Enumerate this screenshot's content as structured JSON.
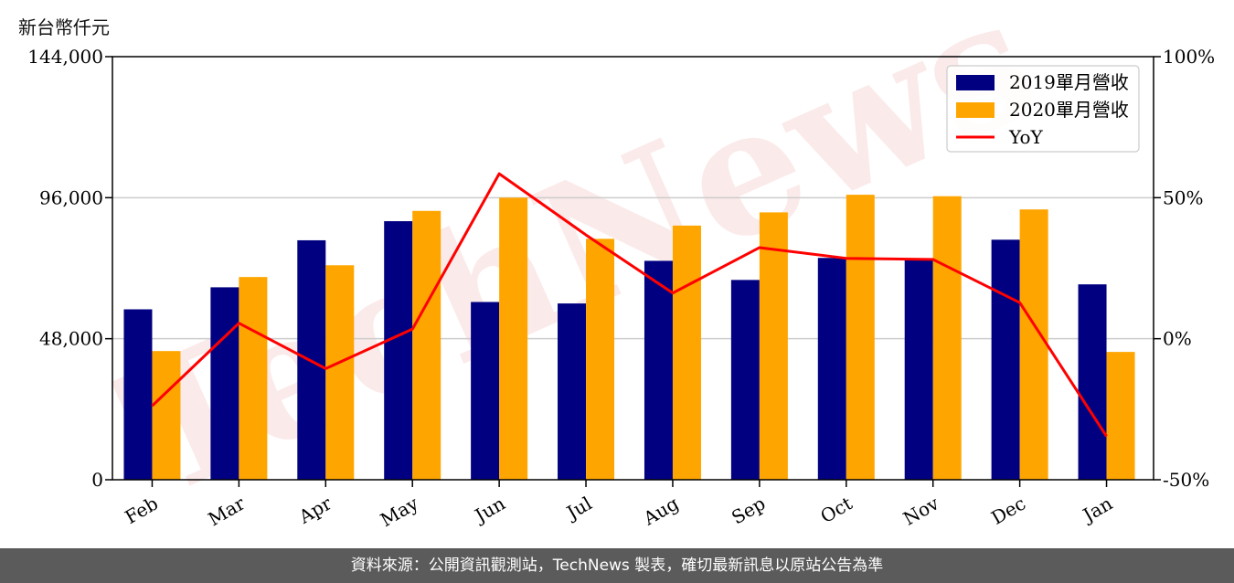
{
  "unit_label": "新台幣仟元",
  "footer": "資料來源：公開資訊觀測站，TechNews 製表，確切最新訊息以原站公告為準",
  "watermark": "TechNews",
  "colors": {
    "series_2019": "#000080",
    "series_2020": "#FFA500",
    "yoy": "#FF0000",
    "grid": "#cccccc"
  },
  "chart_data": {
    "type": "bar",
    "categories": [
      "Feb",
      "Mar",
      "Apr",
      "May",
      "Jun",
      "Jul",
      "Aug",
      "Sep",
      "Oct",
      "Nov",
      "Dec",
      "Jan"
    ],
    "series": [
      {
        "name": "2019單月營收",
        "type": "bar",
        "axis": "left",
        "values": [
          58000,
          65500,
          81500,
          88000,
          60500,
          60000,
          74500,
          68000,
          75500,
          75000,
          81700,
          66500
        ]
      },
      {
        "name": "2020單月營收",
        "type": "bar",
        "axis": "left",
        "values": [
          43800,
          69000,
          73000,
          91500,
          96000,
          82000,
          86500,
          91000,
          97000,
          96500,
          92000,
          43500
        ]
      },
      {
        "name": "YoY",
        "type": "line",
        "axis": "right",
        "values": [
          -23.8,
          5.5,
          -10.6,
          3.4,
          58.5,
          36.8,
          16.2,
          32.3,
          28.5,
          28.1,
          12.8,
          -34.6
        ]
      }
    ],
    "ylim": [
      0,
      144000
    ],
    "yticks": [
      0,
      48000,
      96000,
      144000
    ],
    "ytick_labels": [
      "0",
      "48,000",
      "96,000",
      "144,000"
    ],
    "y2lim": [
      -50,
      100
    ],
    "y2ticks": [
      -50,
      0,
      50,
      100
    ],
    "y2tick_labels": [
      "-50%",
      "0%",
      "50%",
      "100%"
    ],
    "grid": "horizontal",
    "legend_position": "top-right"
  }
}
